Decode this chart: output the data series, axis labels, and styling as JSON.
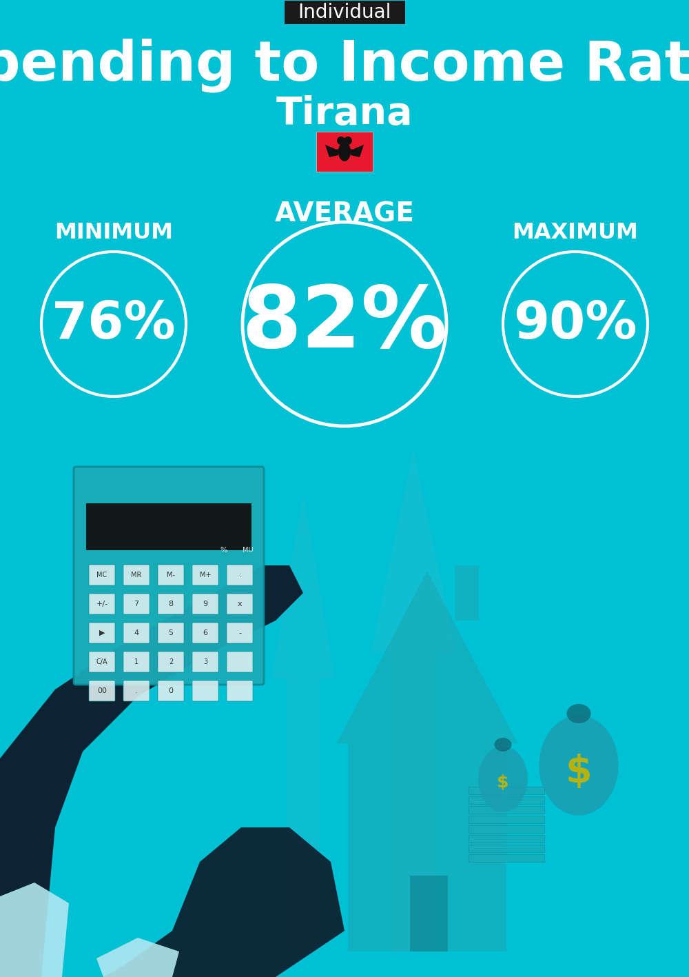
{
  "bg_color": "#00C0D4",
  "title_label": "Individual",
  "title_label_bg": "#1a1a1a",
  "title_label_color": "#ffffff",
  "main_title": "Spending to Income Ratio",
  "subtitle": "Tirana",
  "text_color": "#ffffff",
  "avg_label": "AVERAGE",
  "min_label": "MINIMUM",
  "max_label": "MAXIMUM",
  "avg_value": "82%",
  "min_value": "76%",
  "max_value": "90%",
  "circle_color": "#ffffff",
  "figsize": [
    10.0,
    14.17
  ],
  "dpi": 100,
  "flag_color": "#E8192C",
  "arrow_color": "#1ABED4",
  "house_color": "#1AABB8",
  "bag_color": "#1AABB8",
  "dollar_color": "#C8B400",
  "hand_color": "#0D1B2A",
  "cuff_color": "#B0E8F0",
  "calc_color": "#1AABB8"
}
